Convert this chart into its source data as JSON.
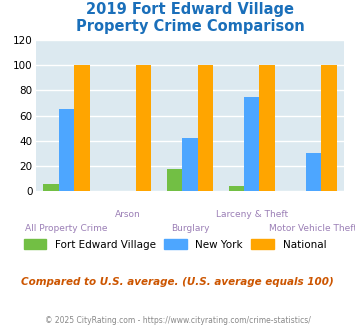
{
  "title": "2019 Fort Edward Village\nProperty Crime Comparison",
  "categories": [
    "All Property Crime",
    "Arson",
    "Burglary",
    "Larceny & Theft",
    "Motor Vehicle Theft"
  ],
  "fort_edward": [
    6,
    0,
    18,
    4,
    0
  ],
  "new_york": [
    65,
    0,
    42,
    75,
    30
  ],
  "national": [
    100,
    100,
    100,
    100,
    100
  ],
  "fort_edward_color": "#72bf44",
  "new_york_color": "#4da6ff",
  "national_color": "#ffa500",
  "bar_width": 0.25,
  "ylim": [
    0,
    120
  ],
  "yticks": [
    0,
    20,
    40,
    60,
    80,
    100,
    120
  ],
  "background_color": "#dce9f0",
  "grid_color": "#ffffff",
  "title_color": "#1a6fba",
  "xlabel_color_even": "#9b7fb6",
  "xlabel_color_odd": "#9b7fb6",
  "legend_labels": [
    "Fort Edward Village",
    "New York",
    "National"
  ],
  "footnote": "Compared to U.S. average. (U.S. average equals 100)",
  "copyright": "© 2025 CityRating.com - https://www.cityrating.com/crime-statistics/"
}
